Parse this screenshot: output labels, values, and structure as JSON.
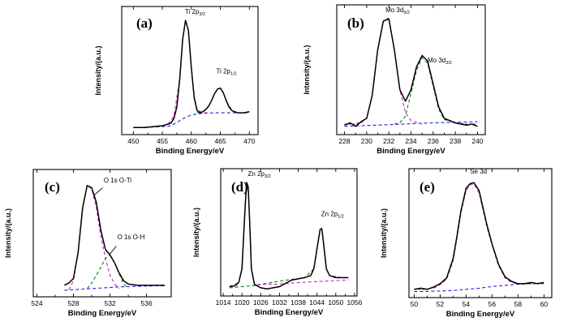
{
  "chart_data": [
    {
      "type": "line",
      "panel_label": "(a)",
      "xlabel": "Binding Energy/eV",
      "ylabel": "Intensity/(a.u.)",
      "xlim": [
        448,
        471.5
      ],
      "ylim": [
        0,
        1.05
      ],
      "xticks": [
        "450",
        "455",
        "460",
        "465",
        "470"
      ],
      "annotations": [
        {
          "text": "Ti 2p",
          "sub": "3/2",
          "x": 458.9,
          "y": 1.0
        },
        {
          "text": "Ti 2p",
          "sub": "1/2",
          "x": 464.3,
          "y": 0.47
        }
      ],
      "series": [
        {
          "color": "#000000",
          "x": [
            450,
            452,
            454,
            455,
            456,
            456.5,
            457,
            457.5,
            458,
            458.5,
            459,
            459.5,
            460,
            460.5,
            461,
            461.5,
            462,
            462.5,
            463,
            463.5,
            464,
            464.5,
            465,
            465.5,
            466,
            466.5,
            467,
            467.5,
            468,
            469,
            470
          ],
          "y": [
            0.02,
            0.02,
            0.03,
            0.035,
            0.05,
            0.06,
            0.1,
            0.2,
            0.45,
            0.8,
            0.97,
            0.88,
            0.55,
            0.28,
            0.17,
            0.15,
            0.16,
            0.18,
            0.21,
            0.26,
            0.32,
            0.36,
            0.37,
            0.33,
            0.26,
            0.2,
            0.17,
            0.16,
            0.15,
            0.15,
            0.16
          ]
        },
        {
          "color": "#dd0000",
          "dash": "3,2",
          "x": [
            450,
            452,
            454,
            455,
            456,
            456.5,
            457,
            457.5,
            458,
            458.5,
            459,
            459.5,
            460,
            460.5,
            461,
            461.5,
            462,
            462.5,
            463,
            463.5,
            464,
            464.5,
            465,
            465.5,
            466,
            466.5,
            467,
            467.5,
            468,
            469,
            470
          ],
          "y": [
            0.02,
            0.02,
            0.03,
            0.035,
            0.05,
            0.06,
            0.1,
            0.2,
            0.45,
            0.8,
            0.97,
            0.88,
            0.55,
            0.28,
            0.17,
            0.15,
            0.16,
            0.18,
            0.21,
            0.26,
            0.32,
            0.36,
            0.37,
            0.33,
            0.26,
            0.2,
            0.17,
            0.16,
            0.15,
            0.15,
            0.16
          ]
        },
        {
          "color": "#2222dd",
          "dash": "4,3",
          "x": [
            450,
            454,
            456,
            457,
            458,
            459,
            460,
            461,
            462,
            464,
            466,
            468,
            470
          ],
          "y": [
            0.02,
            0.025,
            0.03,
            0.05,
            0.08,
            0.11,
            0.13,
            0.14,
            0.145,
            0.15,
            0.15,
            0.15,
            0.15
          ]
        },
        {
          "color": "#cc22cc",
          "dash": "4,3",
          "x": [
            456,
            457,
            458,
            458.5,
            459,
            459.5,
            460,
            460.5,
            461,
            462,
            463
          ],
          "y": [
            0.05,
            0.12,
            0.45,
            0.8,
            0.97,
            0.88,
            0.55,
            0.3,
            0.18,
            0.15,
            0.15
          ]
        },
        {
          "color": "#117711",
          "dash": "4,3",
          "x": [
            461,
            462,
            463,
            464,
            464.5,
            465,
            465.5,
            466,
            467,
            468,
            469
          ],
          "y": [
            0.15,
            0.16,
            0.21,
            0.32,
            0.36,
            0.37,
            0.33,
            0.26,
            0.17,
            0.15,
            0.15
          ]
        }
      ]
    },
    {
      "type": "line",
      "panel_label": "(b)",
      "xlabel": "Binding Energy/eV",
      "ylabel": "Intensity/(a.u.)",
      "xlim": [
        227.3,
        240.7
      ],
      "ylim": [
        0,
        1.05
      ],
      "xticks": [
        "228",
        "230",
        "232",
        "234",
        "236",
        "238",
        "240"
      ],
      "annotations": [
        {
          "text": "Mo 3d",
          "sub": "5/2",
          "x": 231.7,
          "y": 1.0
        },
        {
          "text": "Mo 3d",
          "sub": "3/2",
          "x": 235.5,
          "y": 0.56
        }
      ],
      "series": [
        {
          "color": "#000000",
          "x": [
            228,
            228.5,
            229,
            229.5,
            230,
            230.5,
            231,
            231.5,
            232,
            232.5,
            233,
            233.5,
            234,
            234.5,
            235,
            235.5,
            236,
            236.5,
            237,
            237.5,
            238,
            238.5,
            239,
            239.5,
            240
          ],
          "y": [
            0.04,
            0.06,
            0.03,
            0.07,
            0.1,
            0.3,
            0.7,
            0.95,
            0.97,
            0.7,
            0.35,
            0.25,
            0.35,
            0.55,
            0.65,
            0.6,
            0.4,
            0.2,
            0.1,
            0.08,
            0.06,
            0.05,
            0.04,
            0.05,
            0.03
          ]
        },
        {
          "color": "#dd0000",
          "dash": "3,2",
          "x": [
            228,
            229,
            229.5,
            230,
            230.5,
            231,
            231.5,
            232,
            232.5,
            233,
            233.5,
            234,
            234.5,
            235,
            235.5,
            236,
            236.5,
            237,
            238,
            239,
            240
          ],
          "y": [
            0.05,
            0.05,
            0.07,
            0.1,
            0.3,
            0.7,
            0.95,
            0.98,
            0.7,
            0.35,
            0.25,
            0.35,
            0.55,
            0.65,
            0.6,
            0.4,
            0.2,
            0.1,
            0.06,
            0.05,
            0.05
          ]
        },
        {
          "color": "#2222dd",
          "dash": "4,3",
          "x": [
            228,
            232,
            236,
            240
          ],
          "y": [
            0.03,
            0.045,
            0.06,
            0.07
          ]
        },
        {
          "color": "#cc22cc",
          "dash": "4,3",
          "x": [
            229.5,
            230,
            230.5,
            231,
            231.5,
            232,
            232.5,
            233,
            233.5,
            234,
            235
          ],
          "y": [
            0.06,
            0.1,
            0.3,
            0.7,
            0.95,
            0.98,
            0.7,
            0.35,
            0.15,
            0.08,
            0.05
          ]
        },
        {
          "color": "#117711",
          "dash": "4,3",
          "x": [
            232.5,
            233,
            233.5,
            234,
            234.5,
            235,
            235.5,
            236,
            236.5,
            237,
            238
          ],
          "y": [
            0.05,
            0.06,
            0.12,
            0.32,
            0.52,
            0.63,
            0.58,
            0.38,
            0.18,
            0.09,
            0.06
          ]
        }
      ]
    },
    {
      "type": "line",
      "panel_label": "(c)",
      "xlabel": "Binding Energy/eV",
      "ylabel": "Intensity/(a.u.)",
      "xlim": [
        523.6,
        538.7
      ],
      "ylim": [
        0,
        1.05
      ],
      "xticks": [
        "524",
        "528",
        "532",
        "536"
      ],
      "annotations": [
        {
          "text": "O 1s O-Ti",
          "sub": "",
          "x": 531.3,
          "y": 0.95
        },
        {
          "text": "O 1s O-H",
          "sub": "",
          "x": 532.8,
          "y": 0.44
        }
      ],
      "series": [
        {
          "color": "#000000",
          "x": [
            527,
            527.5,
            528,
            528.5,
            529,
            529.5,
            530,
            530.5,
            531,
            531.5,
            532,
            532.5,
            533,
            533.5,
            534,
            535,
            536,
            537,
            538
          ],
          "y": [
            0.06,
            0.08,
            0.12,
            0.35,
            0.75,
            0.95,
            0.93,
            0.8,
            0.55,
            0.38,
            0.33,
            0.26,
            0.17,
            0.1,
            0.07,
            0.06,
            0.06,
            0.06,
            0.06
          ]
        },
        {
          "color": "#dd0000",
          "dash": "3,2",
          "x": [
            527,
            527.5,
            528,
            528.5,
            529,
            529.5,
            530,
            530.5,
            531,
            531.5,
            532,
            532.5,
            533,
            533.5,
            534,
            535,
            536,
            537,
            538
          ],
          "y": [
            0.06,
            0.08,
            0.12,
            0.35,
            0.75,
            0.95,
            0.93,
            0.8,
            0.55,
            0.38,
            0.33,
            0.26,
            0.17,
            0.1,
            0.07,
            0.06,
            0.06,
            0.06,
            0.06
          ]
        },
        {
          "color": "#2222dd",
          "dash": "4,3",
          "x": [
            527,
            529,
            531,
            533,
            535,
            537,
            538
          ],
          "y": [
            0.015,
            0.025,
            0.035,
            0.045,
            0.05,
            0.055,
            0.055
          ]
        },
        {
          "color": "#cc22cc",
          "dash": "4,3",
          "x": [
            527.5,
            528,
            528.5,
            529,
            529.5,
            530,
            530.5,
            531,
            531.5,
            532,
            532.5,
            533
          ],
          "y": [
            0.02,
            0.1,
            0.35,
            0.75,
            0.95,
            0.92,
            0.75,
            0.5,
            0.3,
            0.15,
            0.07,
            0.03
          ]
        },
        {
          "color": "#117711",
          "dash": "4,3",
          "x": [
            529.5,
            530,
            530.5,
            531,
            531.5,
            532,
            532.5,
            533,
            533.5,
            534
          ],
          "y": [
            0.03,
            0.08,
            0.15,
            0.22,
            0.3,
            0.33,
            0.26,
            0.16,
            0.07,
            0.03
          ]
        }
      ]
    },
    {
      "type": "line",
      "panel_label": "(d)",
      "xlabel": "Binding Energy/eV",
      "ylabel": "Intensity/(a.u.)",
      "xlim": [
        1013.2,
        1056.8
      ],
      "ylim": [
        0,
        1.05
      ],
      "xticks": [
        "1014",
        "1020",
        "1026",
        "1032",
        "1038",
        "1044",
        "1050",
        "1056"
      ],
      "annotations": [
        {
          "text": "Zn 2p",
          "sub": "3/2",
          "x": 1021.9,
          "y": 1.0
        },
        {
          "text": "Zn 2p",
          "sub": "1/2",
          "x": 1045.3,
          "y": 0.64
        }
      ],
      "series": [
        {
          "color": "#000000",
          "x": [
            1016,
            1018,
            1019,
            1020,
            1021,
            1021.5,
            1022,
            1022.5,
            1023,
            1024,
            1026,
            1028,
            1032,
            1036,
            1040,
            1042,
            1043,
            1044,
            1045,
            1045.5,
            1046,
            1047,
            1048,
            1050,
            1052,
            1054
          ],
          "y": [
            0.04,
            0.05,
            0.08,
            0.2,
            0.75,
            0.97,
            0.93,
            0.6,
            0.2,
            0.06,
            0.03,
            0.02,
            0.04,
            0.1,
            0.12,
            0.14,
            0.2,
            0.38,
            0.55,
            0.56,
            0.45,
            0.2,
            0.14,
            0.12,
            0.12,
            0.12
          ]
        },
        {
          "color": "#dd0000",
          "dash": "3,2",
          "x": [
            1016,
            1018,
            1019,
            1020,
            1021,
            1021.5,
            1022,
            1022.5,
            1023,
            1024,
            1026,
            1028,
            1032,
            1036,
            1040,
            1042,
            1043,
            1044,
            1045,
            1045.5,
            1046,
            1047,
            1048,
            1050,
            1052,
            1054
          ],
          "y": [
            0.04,
            0.05,
            0.08,
            0.2,
            0.75,
            0.97,
            0.93,
            0.6,
            0.2,
            0.06,
            0.03,
            0.02,
            0.04,
            0.1,
            0.12,
            0.14,
            0.2,
            0.38,
            0.55,
            0.56,
            0.45,
            0.2,
            0.14,
            0.12,
            0.12,
            0.12
          ]
        },
        {
          "color": "#117711",
          "dash": "4,3",
          "x": [
            1016,
            1024,
            1032,
            1040,
            1043,
            1044,
            1045,
            1045.5,
            1046,
            1047,
            1048,
            1052,
            1054
          ],
          "y": [
            0.03,
            0.05,
            0.09,
            0.12,
            0.2,
            0.38,
            0.55,
            0.56,
            0.45,
            0.2,
            0.14,
            0.12,
            0.12
          ]
        },
        {
          "color": "#cc22cc",
          "dash": "4,3",
          "x": [
            1016,
            1019,
            1020,
            1021,
            1021.5,
            1022,
            1022.5,
            1023,
            1024,
            1030,
            1040,
            1054
          ],
          "y": [
            0.04,
            0.08,
            0.2,
            0.75,
            0.97,
            0.93,
            0.6,
            0.2,
            0.06,
            0.06,
            0.08,
            0.1
          ]
        }
      ]
    },
    {
      "type": "line",
      "panel_label": "(e)",
      "xlabel": "Binding Energy/eV",
      "ylabel": "Intensity/(a.u.)",
      "xlim": [
        49.6,
        60.6
      ],
      "ylim": [
        0,
        1.05
      ],
      "xticks": [
        "50",
        "52",
        "54",
        "56",
        "58",
        "60"
      ],
      "annotations": [
        {
          "text": "Se 3d",
          "sub": "",
          "x": 54.3,
          "y": 1.02
        }
      ],
      "series": [
        {
          "color": "#000000",
          "x": [
            50,
            50.5,
            51,
            51.5,
            52,
            52.5,
            53,
            53.3,
            53.6,
            54,
            54.3,
            54.6,
            55,
            55.3,
            55.6,
            56,
            56.5,
            57,
            57.5,
            58,
            58.5,
            59,
            59.5,
            60
          ],
          "y": [
            0.03,
            0.04,
            0.03,
            0.05,
            0.08,
            0.13,
            0.3,
            0.5,
            0.72,
            0.92,
            0.96,
            0.97,
            0.9,
            0.75,
            0.6,
            0.43,
            0.25,
            0.14,
            0.1,
            0.08,
            0.08,
            0.09,
            0.08,
            0.09
          ]
        },
        {
          "color": "#dd0000",
          "dash": "3,2",
          "x": [
            50,
            51,
            51.5,
            52,
            52.5,
            53,
            53.3,
            53.6,
            54,
            54.3,
            54.6,
            55,
            55.3,
            55.6,
            56,
            56.5,
            57,
            57.5,
            58,
            59,
            60
          ],
          "y": [
            0.03,
            0.03,
            0.05,
            0.08,
            0.13,
            0.3,
            0.5,
            0.72,
            0.92,
            0.96,
            0.97,
            0.9,
            0.75,
            0.6,
            0.43,
            0.25,
            0.14,
            0.1,
            0.08,
            0.08,
            0.08
          ]
        },
        {
          "color": "#cc22cc",
          "dash": "4,3",
          "x": [
            51.5,
            52,
            52.5,
            53,
            53.3,
            53.6,
            54,
            54.3,
            54.6,
            55,
            55.3,
            55.6,
            56,
            56.5,
            57,
            57.5,
            58
          ],
          "y": [
            0.04,
            0.07,
            0.12,
            0.28,
            0.48,
            0.7,
            0.9,
            0.95,
            0.96,
            0.88,
            0.73,
            0.58,
            0.42,
            0.24,
            0.13,
            0.09,
            0.08
          ]
        },
        {
          "color": "#2222dd",
          "dash": "4,3",
          "x": [
            50,
            51,
            52,
            53,
            54,
            55,
            56,
            57,
            58,
            59,
            60
          ],
          "y": [
            0.01,
            0.012,
            0.015,
            0.02,
            0.03,
            0.04,
            0.055,
            0.065,
            0.075,
            0.08,
            0.085
          ]
        }
      ]
    }
  ]
}
